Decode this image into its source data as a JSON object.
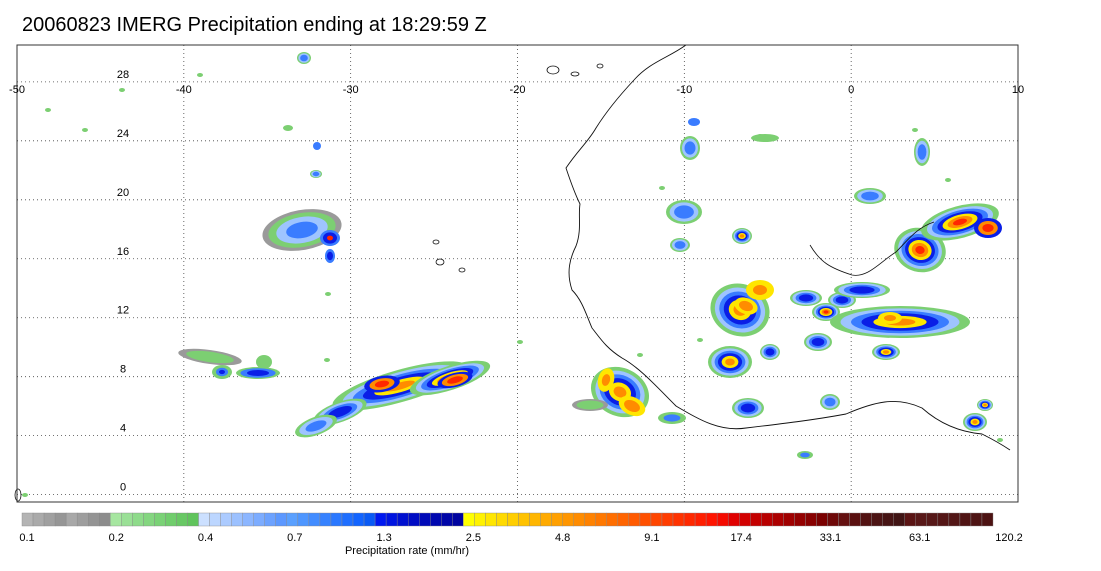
{
  "title": "20060823 IMERG Precipitation ending at 18:29:59 Z",
  "map": {
    "lon_range": [
      -50,
      10
    ],
    "lat_range": [
      -0.5,
      30.5
    ],
    "lon_ticks": [
      -50,
      -40,
      -30,
      -20,
      -10,
      0,
      10
    ],
    "lat_ticks": [
      0,
      4,
      8,
      12,
      16,
      20,
      24,
      28
    ],
    "grid": true
  },
  "colorbar": {
    "title": "Precipitation rate (mm/hr)",
    "labels": [
      "0.1",
      "0.2",
      "0.4",
      "0.7",
      "1.3",
      "2.5",
      "4.8",
      "9.1",
      "17.4",
      "33.1",
      "63.1",
      "120.2"
    ],
    "groups": [
      {
        "count": 8,
        "colors": [
          "#b4b4b4",
          "#aaaaaa",
          "#a0a0a0",
          "#969696",
          "#a8a8a8",
          "#9e9e9e",
          "#949494",
          "#8c8c8c"
        ]
      },
      {
        "count": 8,
        "colors": [
          "#a6e6a0",
          "#9ae096",
          "#8edb8a",
          "#84d680",
          "#7ad276",
          "#70cd6c",
          "#68c864",
          "#60c45c"
        ]
      },
      {
        "count": 8,
        "colors": [
          "#cce0ff",
          "#bcd6ff",
          "#accbff",
          "#9cc1ff",
          "#8cb6ff",
          "#7cacff",
          "#6ca2ff",
          "#5c98ff"
        ]
      },
      {
        "count": 8,
        "colors": [
          "#5aa0ff",
          "#4e96ff",
          "#428cff",
          "#3682ff",
          "#2a78ff",
          "#1e6eff",
          "#1264ff",
          "#0a5af5"
        ]
      },
      {
        "count": 8,
        "colors": [
          "#0018f0",
          "#0014e0",
          "#0010d0",
          "#000cc4",
          "#000ab8",
          "#0008b0",
          "#0006a8",
          "#0004a0"
        ]
      },
      {
        "count": 8,
        "colors": [
          "#ffff00",
          "#fff200",
          "#ffe600",
          "#ffda00",
          "#ffce00",
          "#ffc200",
          "#ffb600",
          "#ffaa00"
        ]
      },
      {
        "count": 8,
        "colors": [
          "#ffa000",
          "#ff9600",
          "#ff8c00",
          "#ff8200",
          "#ff7800",
          "#ff6e00",
          "#ff6400",
          "#ff5a00"
        ]
      },
      {
        "count": 8,
        "colors": [
          "#ff5000",
          "#ff4600",
          "#ff3c00",
          "#ff3200",
          "#ff2800",
          "#ff1e00",
          "#ff1400",
          "#f50a00"
        ]
      },
      {
        "count": 8,
        "colors": [
          "#e00000",
          "#d20000",
          "#c40000",
          "#b80000",
          "#ac0000",
          "#a00000",
          "#940000",
          "#880000"
        ]
      },
      {
        "count": 8,
        "colors": [
          "#7a0000",
          "#6e0808",
          "#641010",
          "#5a1010",
          "#521212",
          "#4c1414",
          "#461414",
          "#401414"
        ]
      },
      {
        "count": 8,
        "colors": [
          "#5a1414",
          "#581818",
          "#561818",
          "#541616",
          "#521616",
          "#501414",
          "#4e1414",
          "#4c1212"
        ]
      }
    ]
  },
  "colors": {
    "grey": "#9a9a9a",
    "green": "#7ccf72",
    "lightblue": "#9ec4ff",
    "blue": "#3a7cff",
    "darkblue": "#0a1ee6",
    "yellow": "#ffe600",
    "orange": "#ff8c00",
    "red": "#ff2800",
    "darkred": "#9a0000"
  }
}
